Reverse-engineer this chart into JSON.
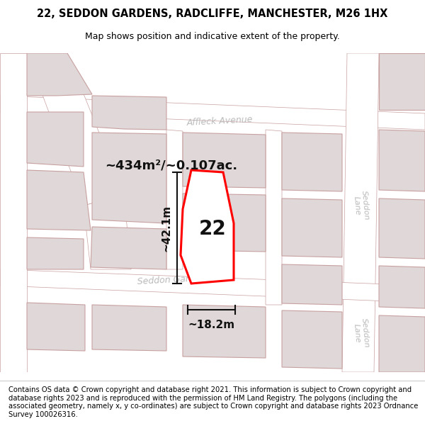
{
  "title": "22, SEDDON GARDENS, RADCLIFFE, MANCHESTER, M26 1HX",
  "subtitle": "Map shows position and indicative extent of the property.",
  "footer": "Contains OS data © Crown copyright and database right 2021. This information is subject to Crown copyright and database rights 2023 and is reproduced with the permission of HM Land Registry. The polygons (including the associated geometry, namely x, y co-ordinates) are subject to Crown copyright and database rights 2023 Ordnance Survey 100026316.",
  "area_label": "~434m²/~0.107ac.",
  "width_label": "~18.2m",
  "height_label": "~42.1m",
  "number_label": "22",
  "bg_color": "#ffffff",
  "map_bg": "#f2eded",
  "road_color": "#ffffff",
  "building_color": "#e0d8d8",
  "outline_color": "#c8a0a0",
  "highlight_color": "#ff0000",
  "title_fontsize": 10.5,
  "subtitle_fontsize": 9,
  "footer_fontsize": 7.2,
  "area_fontsize": 13,
  "number_fontsize": 20,
  "street_fontsize": 9
}
